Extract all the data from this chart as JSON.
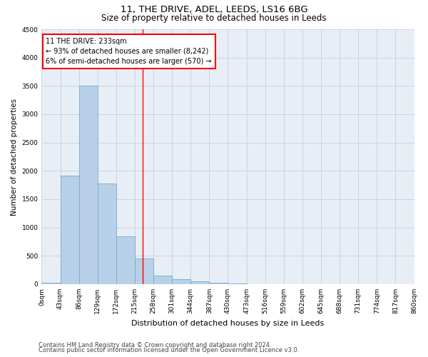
{
  "title1": "11, THE DRIVE, ADEL, LEEDS, LS16 6BG",
  "title2": "Size of property relative to detached houses in Leeds",
  "xlabel": "Distribution of detached houses by size in Leeds",
  "ylabel": "Number of detached properties",
  "bar_values": [
    30,
    1920,
    3500,
    1780,
    850,
    450,
    150,
    90,
    55,
    30,
    15,
    0,
    0,
    0,
    0,
    0,
    0,
    0,
    0,
    0
  ],
  "bin_edges": [
    0,
    43,
    86,
    129,
    172,
    215,
    258,
    301,
    344,
    387,
    430,
    473,
    516,
    559,
    602,
    645,
    688,
    731,
    774,
    817,
    860
  ],
  "tick_labels": [
    "0sqm",
    "43sqm",
    "86sqm",
    "129sqm",
    "172sqm",
    "215sqm",
    "258sqm",
    "301sqm",
    "344sqm",
    "387sqm",
    "430sqm",
    "473sqm",
    "516sqm",
    "559sqm",
    "602sqm",
    "645sqm",
    "688sqm",
    "731sqm",
    "774sqm",
    "817sqm",
    "860sqm"
  ],
  "bar_color": "#b8d0e8",
  "bar_edge_color": "#7aaac8",
  "grid_color": "#c8d4e4",
  "bg_color": "#e8eef6",
  "property_line_x": 233,
  "annotation_text": "11 THE DRIVE: 233sqm\n← 93% of detached houses are smaller (8,242)\n6% of semi-detached houses are larger (570) →",
  "footnote1": "Contains HM Land Registry data © Crown copyright and database right 2024.",
  "footnote2": "Contains public sector information licensed under the Open Government Licence v3.0.",
  "ylim": [
    0,
    4500
  ],
  "yticks": [
    0,
    500,
    1000,
    1500,
    2000,
    2500,
    3000,
    3500,
    4000,
    4500
  ],
  "title1_fontsize": 9.5,
  "title2_fontsize": 8.5,
  "xlabel_fontsize": 8,
  "ylabel_fontsize": 7.5,
  "tick_fontsize": 6.5,
  "annot_fontsize": 7,
  "footnote_fontsize": 6
}
